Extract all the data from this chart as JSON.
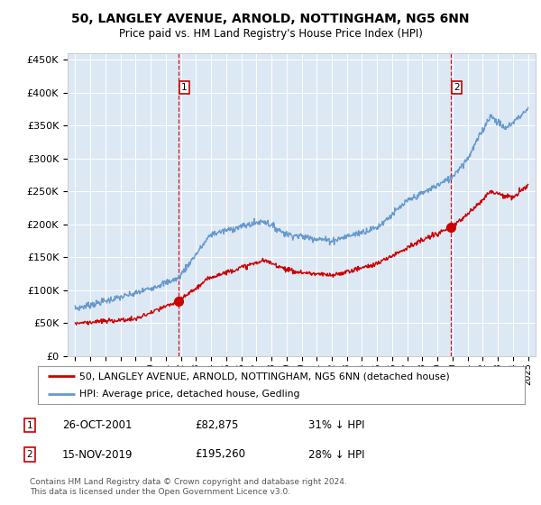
{
  "title": "50, LANGLEY AVENUE, ARNOLD, NOTTINGHAM, NG5 6NN",
  "subtitle": "Price paid vs. HM Land Registry's House Price Index (HPI)",
  "sale1_date": "26-OCT-2001",
  "sale1_price": 82875,
  "sale1_label": "31% ↓ HPI",
  "sale2_date": "15-NOV-2019",
  "sale2_price": 195260,
  "sale2_label": "28% ↓ HPI",
  "sale1_x": 2001.82,
  "sale2_x": 2019.88,
  "legend_line1": "50, LANGLEY AVENUE, ARNOLD, NOTTINGHAM, NG5 6NN (detached house)",
  "legend_line2": "HPI: Average price, detached house, Gedling",
  "footer1": "Contains HM Land Registry data © Crown copyright and database right 2024.",
  "footer2": "This data is licensed under the Open Government Licence v3.0.",
  "hpi_color": "#6699cc",
  "price_color": "#cc0000",
  "bg_color": "#dde8f5",
  "ylim_min": 0,
  "ylim_max": 460000,
  "xlim_min": 1994.5,
  "xlim_max": 2025.5
}
